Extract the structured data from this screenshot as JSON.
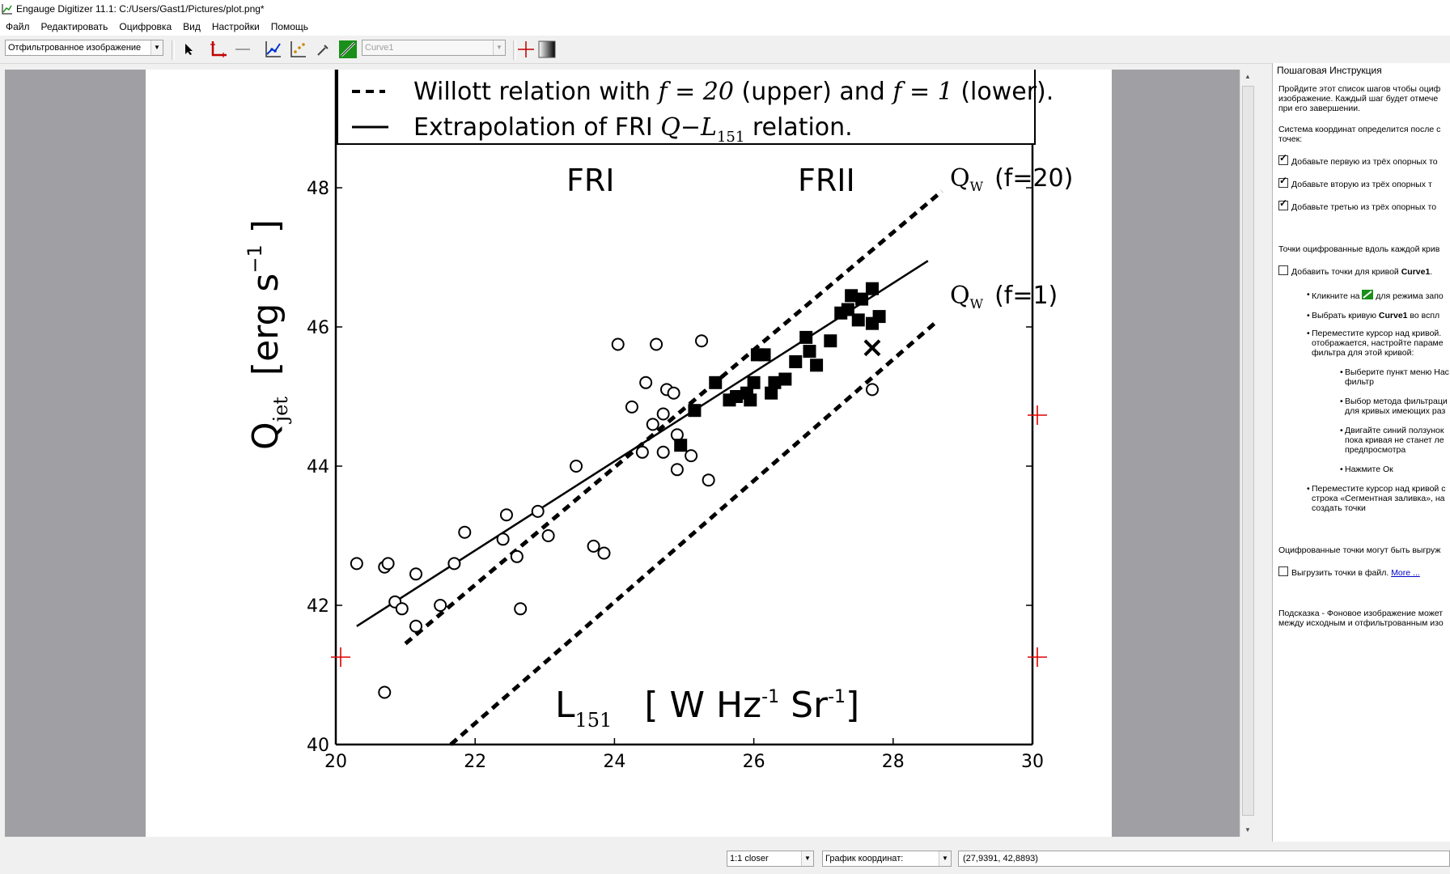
{
  "window": {
    "title": "Engauge Digitizer 11.1: C:/Users/Gast1/Pictures/plot.png*"
  },
  "menu": [
    "Файл",
    "Редактировать",
    "Оцифровка",
    "Вид",
    "Настройки",
    "Помощь"
  ],
  "toolbar": {
    "background_mode": "Отфильтрованное изображение",
    "curve_select": "Curve1"
  },
  "panel": {
    "title": "Пошаговая Инструкция",
    "intro": [
      "Пройдите этот список шагов чтобы оциф",
      "изображение. Каждый шаг будет отмече",
      "при его завершении."
    ],
    "axes_intro": [
      "Система координат определится после с",
      "точек:"
    ],
    "axis_steps": [
      "Добавьте первую из трёх опорных то",
      "Добавьте вторую из трёх опорных т",
      "Добавьте третью из трёх опорных то"
    ],
    "curve_intro": "Точки оцифрованные вдоль каждой крив",
    "curve_step_prefix": "Добавить точки для кривой ",
    "curve_step_name": "Curve1",
    "sub_click_prefix": "Кликните на",
    "sub_click_suffix": "для режима запо",
    "sub_select_prefix": "Выбрать кривую ",
    "sub_select_name": "Curve1",
    "sub_select_suffix": " во вспл",
    "sub_move": [
      "Переместите курсор над кривой.",
      "отображается, настройте парамe",
      "фильтра для этой кривой:"
    ],
    "filter_1": [
      "Выберите пункт меню Нас",
      "фильтр"
    ],
    "filter_2": [
      "Выбор метода фильтраци",
      "для кривых имеющих раз"
    ],
    "filter_3": [
      "Двигайте синий ползунок",
      "пока кривая не станет ле",
      "предпросмотра"
    ],
    "filter_4": "Нажмите Ок",
    "sub_segment": [
      "Переместите курсор над кривой с",
      "строка «Сегментная заливка», на",
      "создать точки"
    ],
    "export_intro": "Оцифрованные точки могут быть выгруж",
    "export_step": "Выгрузить точки в файл.",
    "export_link": "More ...",
    "hint": [
      "Подсказка - Фоновое изображение может",
      "между исходным и отфильтрованным изо"
    ]
  },
  "status": {
    "zoom": "1:1 closer",
    "coords_mode": "График координат:",
    "coords_value": "(27,9391, 42,8893)"
  },
  "plot": {
    "legend_dashed": "Willott relation with",
    "legend_dashed_f1": "f = 20",
    "legend_dashed_mid": "(upper) and",
    "legend_dashed_f2": "f = 1",
    "legend_dashed_end": "(lower).",
    "legend_solid": "Extrapolation of FRI",
    "legend_solid_q": "Q",
    "legend_solid_l": "L",
    "legend_solid_sub": "151",
    "legend_solid_end": "relation.",
    "label_fri": "FRI",
    "label_frii": "FRII",
    "label_upper": "(f=20)",
    "label_lower": "(f=1)",
    "label_qw": "Q",
    "label_w_sub": "W",
    "xlabel_main": "L",
    "xlabel_sub": "151",
    "xlabel_units": "[ W Hz",
    "xlabel_units_sup": "-1",
    "xlabel_units2": " Sr",
    "xlabel_units2_sup": "-1",
    "xlabel_units_end": "]",
    "ylabel_main": "Q",
    "ylabel_sub": "jet",
    "ylabel_units": "[erg s",
    "ylabel_units_sup": "−1",
    "ylabel_units_end": " ]"
  },
  "chart_data": {
    "type": "scatter",
    "xlim": [
      20,
      30
    ],
    "ylim": [
      40,
      48
    ],
    "xticks": [
      "20",
      "22",
      "24",
      "26",
      "28",
      "30"
    ],
    "yticks": [
      "40",
      "42",
      "44",
      "46",
      "48"
    ],
    "series": [
      {
        "marker": "open-circle",
        "points": [
          [
            20.3,
            42.6
          ],
          [
            20.7,
            42.55
          ],
          [
            20.75,
            42.6
          ],
          [
            20.85,
            42.05
          ],
          [
            20.95,
            41.95
          ],
          [
            21.15,
            42.45
          ],
          [
            21.15,
            41.7
          ],
          [
            21.5,
            42.0
          ],
          [
            21.7,
            42.6
          ],
          [
            21.85,
            43.05
          ],
          [
            22.4,
            42.95
          ],
          [
            22.45,
            43.3
          ],
          [
            22.6,
            42.7
          ],
          [
            22.65,
            41.95
          ],
          [
            22.9,
            43.35
          ],
          [
            23.05,
            43.0
          ],
          [
            23.45,
            44.0
          ],
          [
            23.7,
            42.85
          ],
          [
            23.85,
            42.75
          ],
          [
            24.05,
            45.75
          ],
          [
            24.25,
            44.85
          ],
          [
            24.4,
            44.2
          ],
          [
            24.45,
            45.2
          ],
          [
            24.55,
            44.6
          ],
          [
            24.6,
            45.75
          ],
          [
            24.7,
            44.2
          ],
          [
            24.7,
            44.75
          ],
          [
            24.75,
            45.1
          ],
          [
            24.85,
            45.05
          ],
          [
            24.9,
            44.45
          ],
          [
            24.9,
            43.95
          ],
          [
            25.1,
            44.15
          ],
          [
            25.25,
            45.8
          ],
          [
            25.35,
            43.8
          ],
          [
            27.7,
            45.1
          ],
          [
            20.7,
            40.75
          ]
        ]
      },
      {
        "marker": "filled-square",
        "points": [
          [
            24.95,
            44.3
          ],
          [
            25.15,
            44.8
          ],
          [
            25.45,
            45.2
          ],
          [
            25.65,
            44.95
          ],
          [
            25.75,
            45.0
          ],
          [
            25.9,
            45.05
          ],
          [
            25.95,
            44.95
          ],
          [
            26.0,
            45.2
          ],
          [
            26.05,
            45.6
          ],
          [
            26.15,
            45.6
          ],
          [
            26.25,
            45.05
          ],
          [
            26.3,
            45.2
          ],
          [
            26.45,
            45.25
          ],
          [
            26.6,
            45.5
          ],
          [
            26.75,
            45.85
          ],
          [
            26.8,
            45.65
          ],
          [
            26.9,
            45.45
          ],
          [
            27.1,
            45.8
          ],
          [
            27.25,
            46.2
          ],
          [
            27.35,
            46.25
          ],
          [
            27.4,
            46.45
          ],
          [
            27.5,
            46.1
          ],
          [
            27.55,
            46.4
          ],
          [
            27.7,
            46.55
          ],
          [
            27.7,
            46.05
          ],
          [
            27.8,
            46.15
          ]
        ]
      },
      {
        "marker": "cross",
        "points": [
          [
            27.7,
            45.7
          ]
        ]
      },
      {
        "name": "Willott relation with f=20 (upper)",
        "style": "dashed",
        "line": [
          [
            21.0,
            41.45
          ],
          [
            28.7,
            47.95
          ]
        ]
      },
      {
        "name": "Willott relation with f=1 (lower)",
        "style": "dashed",
        "line": [
          [
            21.65,
            40.0
          ],
          [
            28.65,
            46.1
          ]
        ]
      },
      {
        "name": "Extrapolation of FRI Q-L151 relation",
        "style": "solid",
        "line": [
          [
            20.3,
            41.7
          ],
          [
            28.5,
            46.95
          ]
        ]
      }
    ]
  }
}
